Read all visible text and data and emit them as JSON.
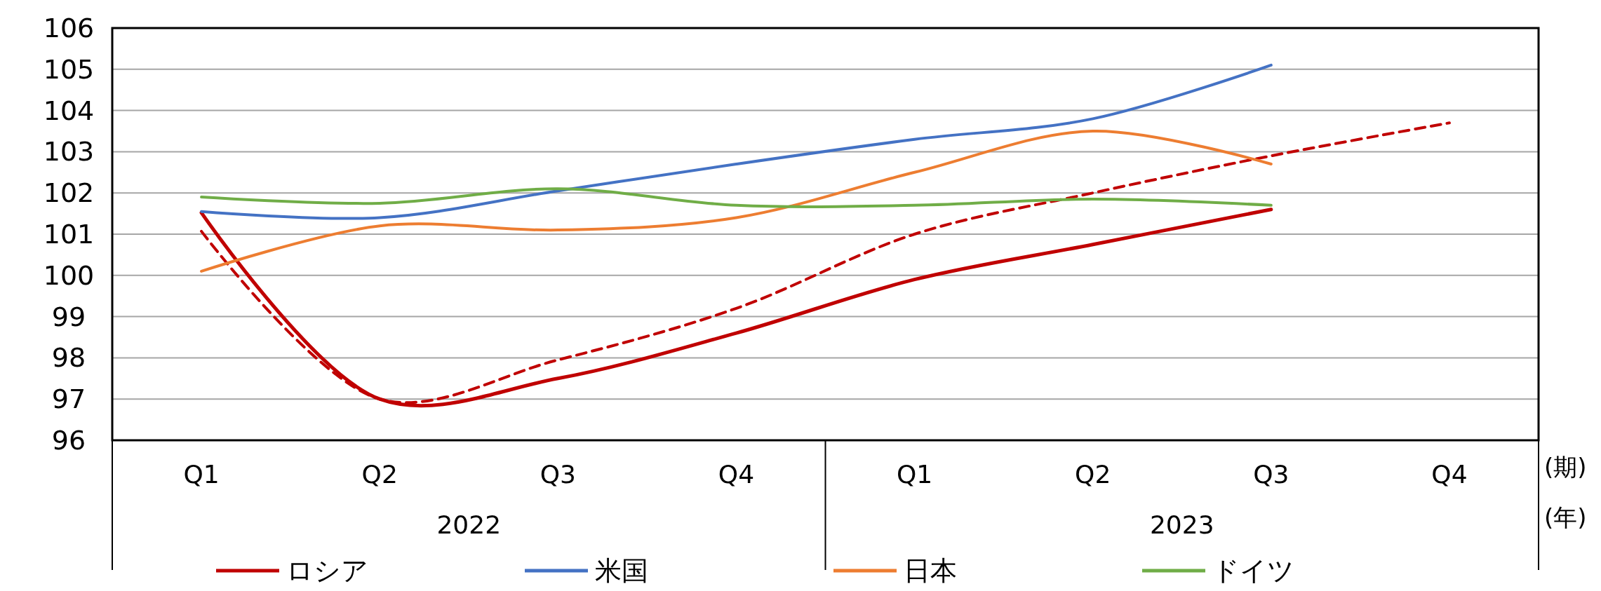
{
  "chart_data": {
    "type": "line",
    "categories": [
      "Q1",
      "Q2",
      "Q3",
      "Q4",
      "Q1",
      "Q2",
      "Q3",
      "Q4"
    ],
    "xlabel": "(期)",
    "annotations": [
      "2022",
      "2023",
      "(年)"
    ],
    "ylim": [
      96,
      106
    ],
    "yticks": [
      96,
      97,
      98,
      99,
      100,
      101,
      102,
      103,
      104,
      105,
      106
    ],
    "grid": "y",
    "legend": "bottom",
    "marker": "none",
    "series": [
      {
        "name": "ロシア",
        "color": "#c00000",
        "values": [
          101.52,
          97.0,
          97.5,
          98.6,
          99.9,
          100.75,
          101.6,
          null
        ]
      },
      {
        "color": "#c00000",
        "line_style": "dashed",
        "values": [
          101.07,
          97.0,
          97.95,
          99.2,
          101.0,
          102.0,
          102.9,
          103.7
        ]
      },
      {
        "name": "米国",
        "color": "#4472c4",
        "values": [
          101.55,
          101.4,
          102.05,
          102.7,
          103.3,
          103.8,
          105.1,
          null
        ]
      },
      {
        "name": "日本",
        "color": "#ed7d31",
        "values": [
          100.1,
          101.2,
          101.1,
          101.4,
          102.5,
          103.5,
          102.7,
          null
        ]
      },
      {
        "name": "ドイツ",
        "color": "#70ad47",
        "values": [
          101.9,
          101.75,
          102.1,
          101.7,
          101.7,
          101.85,
          101.7,
          null
        ]
      }
    ]
  }
}
